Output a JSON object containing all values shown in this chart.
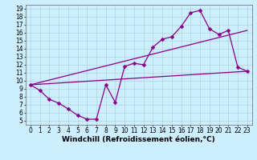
{
  "xlabel": "Windchill (Refroidissement éolien,°C)",
  "background_color": "#cceeff",
  "grid_color": "#aacccc",
  "line_color": "#880088",
  "xlim": [
    -0.5,
    23.5
  ],
  "ylim": [
    4.5,
    19.5
  ],
  "xticks": [
    0,
    1,
    2,
    3,
    4,
    5,
    6,
    7,
    8,
    9,
    10,
    11,
    12,
    13,
    14,
    15,
    16,
    17,
    18,
    19,
    20,
    21,
    22,
    23
  ],
  "yticks": [
    5,
    6,
    7,
    8,
    9,
    10,
    11,
    12,
    13,
    14,
    15,
    16,
    17,
    18,
    19
  ],
  "line1_x": [
    0,
    1,
    2,
    3,
    4,
    5,
    6,
    7,
    8,
    9,
    10,
    11,
    12,
    13,
    14,
    15,
    16,
    17,
    18,
    19,
    20,
    21,
    22,
    23
  ],
  "line1_y": [
    9.5,
    8.8,
    7.7,
    7.2,
    6.5,
    5.7,
    5.2,
    5.2,
    9.5,
    7.3,
    11.8,
    12.2,
    12.0,
    14.2,
    15.2,
    15.5,
    16.8,
    18.5,
    18.8,
    16.5,
    15.8,
    16.3,
    11.7,
    11.2
  ],
  "line2_x": [
    0,
    23
  ],
  "line2_y": [
    9.5,
    11.2
  ],
  "line3_x": [
    0,
    23
  ],
  "line3_y": [
    9.5,
    16.3
  ],
  "markersize": 2.5,
  "linewidth": 0.9,
  "tick_fontsize": 5.5,
  "xlabel_fontsize": 6.5,
  "xlabel_fontweight": "bold"
}
